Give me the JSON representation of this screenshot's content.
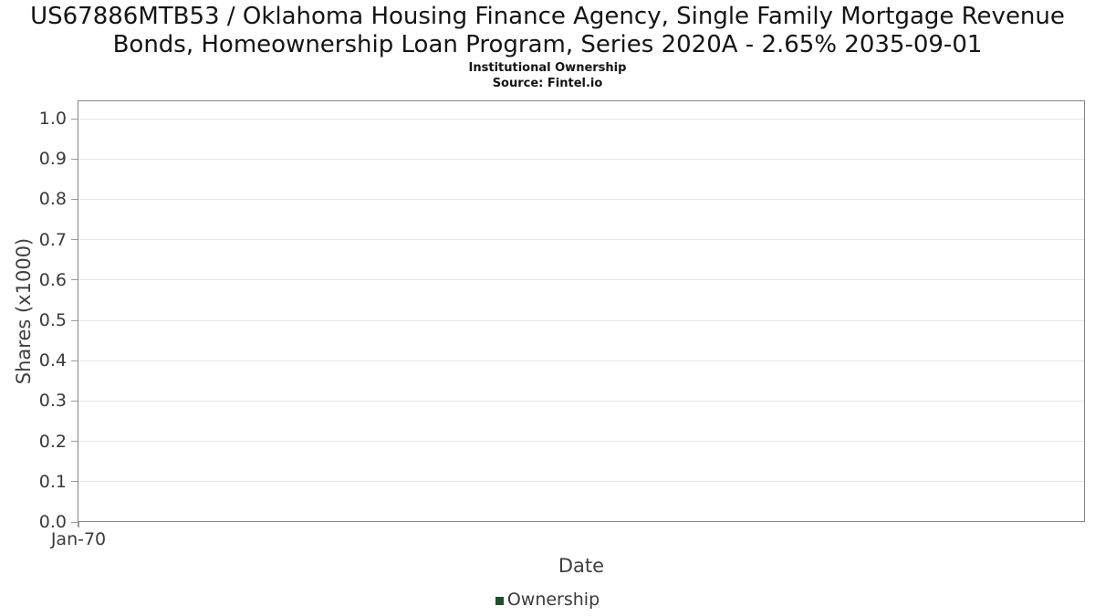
{
  "header": {
    "title": "US67886MTB53 / Oklahoma Housing Finance Agency, Single Family Mortgage Revenue Bonds, Homeownership Loan Program, Series 2020A - 2.65% 2035-09-01",
    "subtitle": "Institutional Ownership",
    "source": "Source: Fintel.io"
  },
  "chart_data": {
    "type": "line",
    "title": "Institutional Ownership",
    "xlabel": "Date",
    "ylabel": "Shares (x1000)",
    "ylim": [
      0.0,
      1.045
    ],
    "yticks": [
      {
        "label": "1.0",
        "value": 1.0
      },
      {
        "label": "0.9",
        "value": 0.9
      },
      {
        "label": "0.8",
        "value": 0.8
      },
      {
        "label": "0.7",
        "value": 0.7
      },
      {
        "label": "0.6",
        "value": 0.6
      },
      {
        "label": "0.5",
        "value": 0.5
      },
      {
        "label": "0.4",
        "value": 0.4
      },
      {
        "label": "0.3",
        "value": 0.3
      },
      {
        "label": "0.2",
        "value": 0.2
      },
      {
        "label": "0.1",
        "value": 0.1
      },
      {
        "label": "0.0",
        "value": 0.0
      }
    ],
    "xticks": [
      {
        "label": "Jan-70",
        "value": 0
      }
    ],
    "grid": "horizontal",
    "legend": {
      "position": "bottom",
      "entries": [
        {
          "label": "Ownership",
          "color": "#1e4e2c"
        }
      ]
    },
    "series": [
      {
        "name": "Ownership",
        "x": [],
        "values": []
      }
    ]
  },
  "colors": {
    "background": "#ffffff",
    "plot_border": "#858585",
    "gridline": "#e6e6e6",
    "tick_text": "#3a3a3a",
    "axis_label_text": "#3f3f3f",
    "title_text": "#141414",
    "legend_swatch": "#1e4e2c"
  }
}
